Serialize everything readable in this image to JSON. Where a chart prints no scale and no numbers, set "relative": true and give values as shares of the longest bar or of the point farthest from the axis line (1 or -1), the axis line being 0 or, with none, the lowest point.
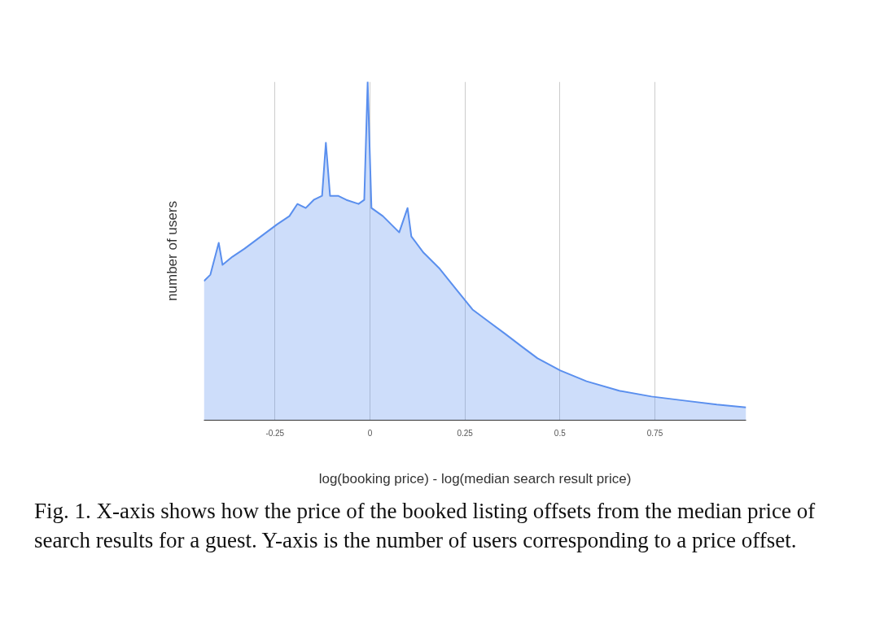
{
  "chart_data": {
    "type": "area",
    "relative": true,
    "xlabel": "log(booking price) - log(median search result price)",
    "ylabel": "number of users",
    "x": [
      -0.437,
      -0.42,
      -0.398,
      -0.388,
      -0.362,
      -0.33,
      -0.287,
      -0.244,
      -0.212,
      -0.191,
      -0.169,
      -0.148,
      -0.126,
      -0.116,
      -0.105,
      -0.084,
      -0.062,
      -0.03,
      -0.015,
      -0.006,
      0.004,
      0.034,
      0.077,
      0.099,
      0.109,
      0.141,
      0.184,
      0.227,
      0.27,
      0.313,
      0.356,
      0.398,
      0.441,
      0.501,
      0.57,
      0.656,
      0.741,
      0.827,
      0.913,
      0.99
    ],
    "series": [
      {
        "color": "#5a8fee",
        "values": [
          0.411,
          0.43,
          0.524,
          0.459,
          0.483,
          0.507,
          0.543,
          0.579,
          0.603,
          0.639,
          0.627,
          0.651,
          0.663,
          0.82,
          0.663,
          0.663,
          0.651,
          0.639,
          0.651,
          1.0,
          0.627,
          0.603,
          0.555,
          0.627,
          0.543,
          0.495,
          0.447,
          0.387,
          0.327,
          0.291,
          0.255,
          0.219,
          0.183,
          0.147,
          0.115,
          0.087,
          0.07,
          0.058,
          0.046,
          0.038
        ]
      }
    ],
    "xlim": [
      -0.437,
      0.99
    ],
    "xticks": [
      -0.25,
      0,
      0.25,
      0.5,
      0.75
    ],
    "grid": "x",
    "annotations": [
      "Fig. 1.  X-axis shows how the price of the booked listing offsets from the median price of search results for a guest. Y-axis is the number of users corresponding to a price offset."
    ]
  }
}
